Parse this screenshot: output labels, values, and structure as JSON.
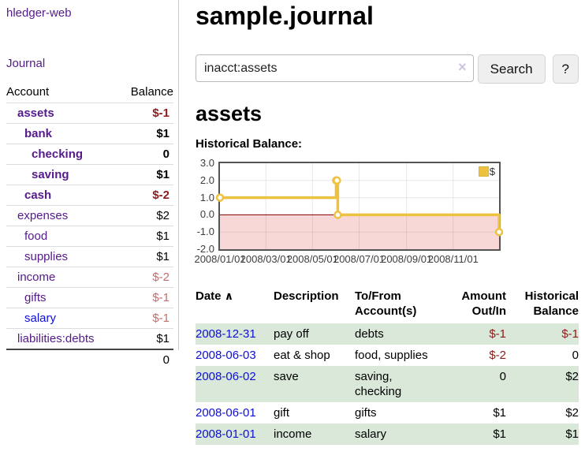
{
  "app": {
    "brand": "hledger-web"
  },
  "sidebar": {
    "journal_link": "Journal",
    "table": {
      "col_account": "Account",
      "col_balance": "Balance",
      "accounts": [
        {
          "name": "assets",
          "indent": 1,
          "bold": true,
          "balance": "$-1",
          "neg": "strong",
          "blue": false
        },
        {
          "name": "bank",
          "indent": 2,
          "bold": true,
          "balance": "$1",
          "neg": "none",
          "blue": false
        },
        {
          "name": "checking",
          "indent": 3,
          "bold": true,
          "balance": "0",
          "neg": "none",
          "blue": false
        },
        {
          "name": "saving",
          "indent": 3,
          "bold": true,
          "balance": "$1",
          "neg": "none",
          "blue": false
        },
        {
          "name": "cash",
          "indent": 2,
          "bold": true,
          "balance": "$-2",
          "neg": "strong",
          "blue": false
        },
        {
          "name": "expenses",
          "indent": 1,
          "bold": false,
          "balance": "$2",
          "neg": "none",
          "blue": false
        },
        {
          "name": "food",
          "indent": 2,
          "bold": false,
          "balance": "$1",
          "neg": "none",
          "blue": false
        },
        {
          "name": "supplies",
          "indent": 2,
          "bold": false,
          "balance": "$1",
          "neg": "none",
          "blue": false
        },
        {
          "name": "income",
          "indent": 1,
          "bold": false,
          "balance": "$-2",
          "neg": "soft",
          "blue": false
        },
        {
          "name": "gifts",
          "indent": 2,
          "bold": false,
          "balance": "$-1",
          "neg": "soft",
          "blue": false
        },
        {
          "name": "salary",
          "indent": 2,
          "bold": false,
          "balance": "$-1",
          "neg": "soft",
          "blue": true
        },
        {
          "name": "liabilities:debts",
          "indent": 1,
          "bold": false,
          "balance": "$1",
          "neg": "none",
          "blue": false
        }
      ],
      "total": "0"
    }
  },
  "header": {
    "title": "sample.journal"
  },
  "search": {
    "value": "inacct:assets",
    "clear_icon": "×",
    "button": "Search",
    "help_button": "?"
  },
  "account_page": {
    "heading": "assets",
    "chart_label": "Historical Balance:"
  },
  "chart_data": {
    "type": "line",
    "step": true,
    "title": "Historical Balance:",
    "x_range": [
      "2008-01-01",
      "2008-12-31"
    ],
    "ylim": [
      -2,
      3
    ],
    "y_ticks": [
      "3.0",
      "2.0",
      "1.0",
      "0.0",
      "-1.0",
      "-2.0"
    ],
    "x_ticks": [
      "2008/01/01",
      "2008/03/01",
      "2008/05/01",
      "2008/07/01",
      "2008/09/01",
      "2008/11/01"
    ],
    "grid": true,
    "legend_position": "top-right",
    "negative_region_shaded": true,
    "series": [
      {
        "name": "$",
        "points": [
          [
            "2008-01-01",
            1
          ],
          [
            "2008-06-01",
            2
          ],
          [
            "2008-06-02",
            2
          ],
          [
            "2008-06-03",
            0
          ],
          [
            "2008-12-31",
            -1
          ]
        ]
      }
    ]
  },
  "register": {
    "columns": {
      "date": "Date",
      "sort_arrow": "∧",
      "description": "Description",
      "accounts": "To/From Account(s)",
      "amount": "Amount Out/In",
      "balance": "Historical Balance"
    },
    "rows": [
      {
        "date": "2008-12-31",
        "description": "pay off",
        "accounts": "debts",
        "amount": "$-1",
        "balance": "$-1",
        "amount_neg": true,
        "balance_neg": true
      },
      {
        "date": "2008-06-03",
        "description": "eat & shop",
        "accounts": "food, supplies",
        "amount": "$-2",
        "balance": "0",
        "amount_neg": true,
        "balance_neg": false
      },
      {
        "date": "2008-06-02",
        "description": "save",
        "accounts": "saving, checking",
        "amount": "0",
        "balance": "$2",
        "amount_neg": false,
        "balance_neg": false
      },
      {
        "date": "2008-06-01",
        "description": "gift",
        "accounts": "gifts",
        "amount": "$1",
        "balance": "$2",
        "amount_neg": false,
        "balance_neg": false
      },
      {
        "date": "2008-01-01",
        "description": "income",
        "accounts": "salary",
        "amount": "$1",
        "balance": "$1",
        "amount_neg": false,
        "balance_neg": false
      }
    ]
  },
  "colors": {
    "link_purple": "#551a8b",
    "link_blue": "#0f0fd6",
    "neg_strong": "#8c1a1a",
    "neg_soft": "#c26d6d",
    "row_green": "#d9e8d9",
    "row_line": "#dddddd",
    "total_line": "#444444",
    "divider": "#cccccc",
    "chart_yellow": "#edc240",
    "chart_border": "#545454",
    "grid_line": "#00000016",
    "zero_line": "#8b0000",
    "negative_fill": "#f8d7d7",
    "tick_text": "#3d3d3d",
    "button_bg": "#efefef",
    "button_border": "#d4d4d4",
    "input_border": "#b9b9b9",
    "clear_icon": "#cdc3e0"
  }
}
